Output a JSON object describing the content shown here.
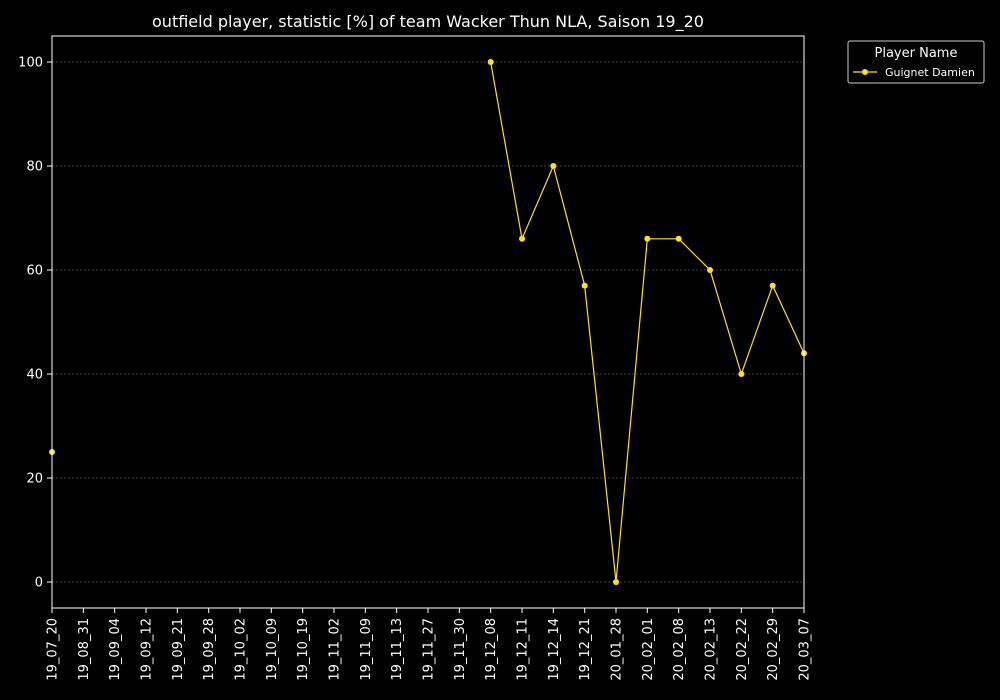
{
  "chart_data": {
    "type": "line",
    "title": "outfield player, statistic [%] of team Wacker Thun NLA, Saison 19_20",
    "xlabel": "",
    "ylabel": "",
    "categories": [
      "19_07_20",
      "19_08_31",
      "19_09_04",
      "19_09_12",
      "19_09_21",
      "19_09_28",
      "19_10_02",
      "19_10_09",
      "19_10_19",
      "19_11_02",
      "19_11_09",
      "19_11_13",
      "19_11_27",
      "19_11_30",
      "19_12_08",
      "19_12_11",
      "19_12_14",
      "19_12_21",
      "20_01_28",
      "20_02_01",
      "20_02_08",
      "20_02_13",
      "20_02_22",
      "20_02_29",
      "20_03_07"
    ],
    "ylim": [
      -5,
      105
    ],
    "yticks": [
      0,
      20,
      40,
      60,
      80,
      100
    ],
    "grid": true,
    "legend": {
      "title": "Player Name",
      "position": "outside-top-right"
    },
    "series": [
      {
        "name": "Guignet Damien",
        "color": "#ffe11a",
        "values": [
          25,
          null,
          null,
          null,
          null,
          null,
          null,
          null,
          null,
          null,
          null,
          null,
          null,
          null,
          100,
          66,
          80,
          57,
          0,
          66,
          66,
          60,
          40,
          57,
          44
        ]
      }
    ]
  },
  "colors": {
    "background": "#000000",
    "axis": "#ffffff",
    "grid": "#7f7f7f",
    "text": "#ffffff"
  }
}
